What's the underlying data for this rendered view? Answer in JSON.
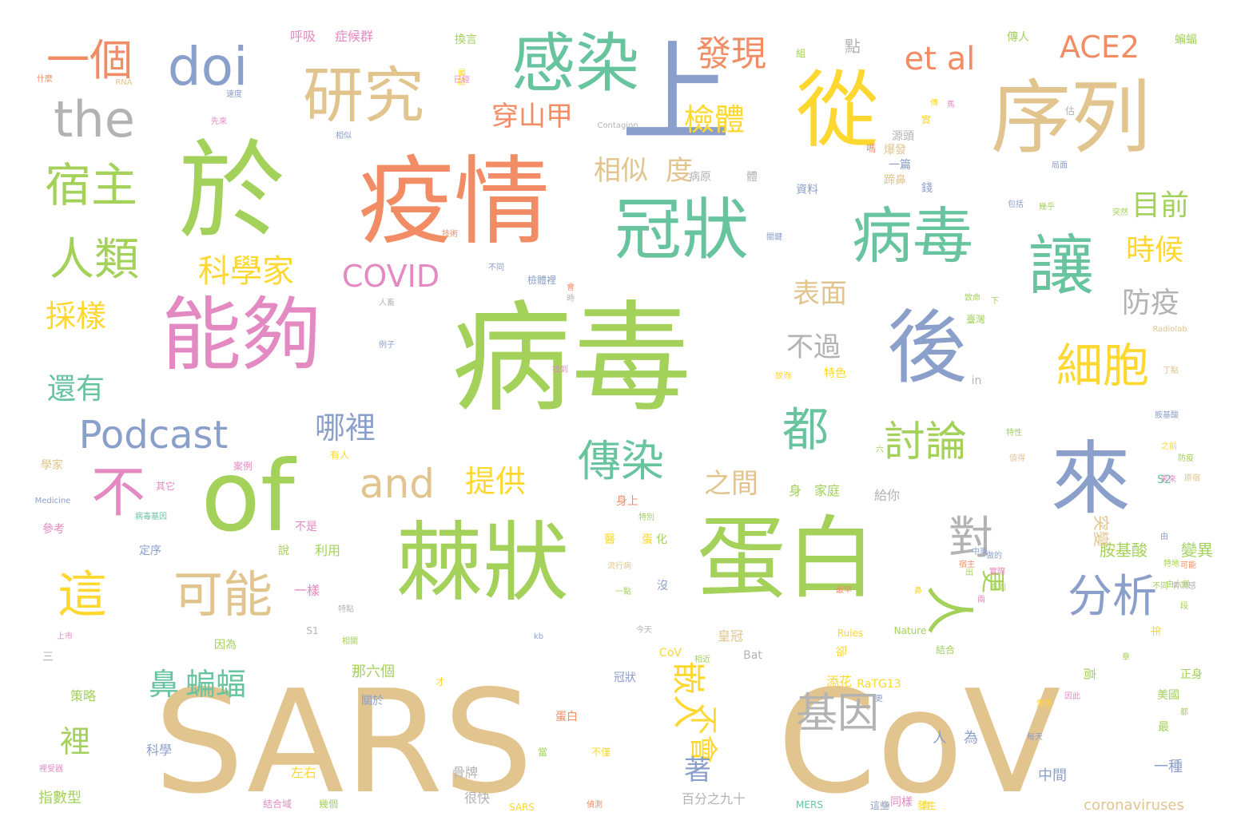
{
  "palette": {
    "green": "#a3d15a",
    "tan": "#e2c48e",
    "teal": "#67c49f",
    "orange": "#f28c64",
    "blue": "#8b9fcb",
    "pink": "#e48ac2",
    "yellow": "#fed730",
    "gray": "#b3b3b3"
  },
  "words": [
    {
      "text": "SARS",
      "color": "tan"
    },
    {
      "text": "CoV",
      "color": "tan"
    },
    {
      "text": "病毒",
      "color": "green"
    },
    {
      "text": "疫情",
      "color": "orange"
    },
    {
      "text": "於",
      "color": "green"
    },
    {
      "text": "上",
      "color": "blue"
    },
    {
      "text": "從",
      "color": "yellow"
    },
    {
      "text": "序列",
      "color": "tan"
    },
    {
      "text": "蛋白",
      "color": "green"
    },
    {
      "text": "棘狀",
      "color": "green"
    },
    {
      "text": "來",
      "color": "blue"
    },
    {
      "text": "後",
      "color": "blue"
    },
    {
      "text": "of",
      "color": "green"
    },
    {
      "text": "能夠",
      "color": "pink"
    },
    {
      "text": "病毒",
      "color": "teal"
    },
    {
      "text": "讓",
      "color": "teal"
    },
    {
      "text": "冠狀",
      "color": "teal"
    },
    {
      "text": "感染",
      "color": "teal"
    },
    {
      "text": "研究",
      "color": "tan"
    },
    {
      "text": "doi",
      "color": "blue"
    },
    {
      "text": "the",
      "color": "gray"
    },
    {
      "text": "一個",
      "color": "orange"
    },
    {
      "text": "宿主",
      "color": "green"
    },
    {
      "text": "人類",
      "color": "green"
    },
    {
      "text": "不",
      "color": "pink"
    },
    {
      "text": "這",
      "color": "yellow"
    },
    {
      "text": "可能",
      "color": "tan"
    },
    {
      "text": "Podcast",
      "color": "blue"
    },
    {
      "text": "and",
      "color": "tan"
    },
    {
      "text": "COVID",
      "color": "pink"
    },
    {
      "text": "科學家",
      "color": "yellow"
    },
    {
      "text": "都",
      "color": "teal"
    },
    {
      "text": "傳染",
      "color": "teal"
    },
    {
      "text": "對",
      "color": "gray"
    },
    {
      "text": "分析",
      "color": "blue"
    },
    {
      "text": "人",
      "color": "green"
    },
    {
      "text": "討論",
      "color": "green"
    },
    {
      "text": "細胞",
      "color": "yellow"
    },
    {
      "text": "基因",
      "color": "gray"
    },
    {
      "text": "嵌入",
      "color": "yellow"
    },
    {
      "text": "發現",
      "color": "orange"
    },
    {
      "text": "et al",
      "color": "orange"
    },
    {
      "text": "ACE2",
      "color": "orange"
    },
    {
      "text": "穿山甲",
      "color": "orange"
    },
    {
      "text": "檢體",
      "color": "yellow"
    },
    {
      "text": "相似",
      "color": "tan"
    },
    {
      "text": "度",
      "color": "tan"
    },
    {
      "text": "目前",
      "color": "green"
    },
    {
      "text": "時候",
      "color": "yellow"
    },
    {
      "text": "防疫",
      "color": "gray"
    },
    {
      "text": "表面",
      "color": "tan"
    },
    {
      "text": "不過",
      "color": "gray"
    },
    {
      "text": "哪裡",
      "color": "blue"
    },
    {
      "text": "提供",
      "color": "yellow"
    },
    {
      "text": "之間",
      "color": "tan"
    },
    {
      "text": "還有",
      "color": "teal"
    },
    {
      "text": "採樣",
      "color": "yellow"
    },
    {
      "text": "更",
      "color": "green"
    },
    {
      "text": "鼻",
      "color": "teal"
    },
    {
      "text": "蝙蝠",
      "color": "teal"
    },
    {
      "text": "裡",
      "color": "green"
    },
    {
      "text": "不會",
      "color": "yellow"
    },
    {
      "text": "著",
      "color": "blue"
    },
    {
      "text": "呼吸",
      "color": "pink"
    },
    {
      "text": "症候群",
      "color": "pink"
    },
    {
      "text": "Contagion",
      "color": "gray"
    },
    {
      "text": "病原",
      "color": "gray"
    },
    {
      "text": "體",
      "color": "gray"
    },
    {
      "text": "資料",
      "color": "blue"
    },
    {
      "text": "源頭",
      "color": "gray"
    },
    {
      "text": "爆發",
      "color": "tan"
    },
    {
      "text": "一篇",
      "color": "blue"
    },
    {
      "text": "蹄鼻",
      "color": "tan"
    },
    {
      "text": "錢",
      "color": "blue"
    },
    {
      "text": "點",
      "color": "gray"
    },
    {
      "text": "組",
      "color": "green"
    },
    {
      "text": "傳人",
      "color": "green"
    },
    {
      "text": "蝙蝠",
      "color": "green"
    },
    {
      "text": "換言",
      "color": "green"
    },
    {
      "text": "什麼",
      "color": "orange"
    },
    {
      "text": "RNA",
      "color": "tan"
    },
    {
      "text": "速度",
      "color": "blue"
    },
    {
      "text": "先來",
      "color": "pink"
    },
    {
      "text": "相似",
      "color": "blue"
    },
    {
      "text": "技術",
      "color": "orange"
    },
    {
      "text": "不同",
      "color": "blue"
    },
    {
      "text": "檢體裡",
      "color": "blue"
    },
    {
      "text": "人畜",
      "color": "gray"
    },
    {
      "text": "例子",
      "color": "blue"
    },
    {
      "text": "特色",
      "color": "yellow"
    },
    {
      "text": "故而",
      "color": "yellow"
    },
    {
      "text": "in",
      "color": "gray"
    },
    {
      "text": "Radiolab",
      "color": "tan"
    },
    {
      "text": "胺基酸",
      "color": "green"
    },
    {
      "text": "變異",
      "color": "green"
    },
    {
      "text": "突變",
      "color": "tan"
    },
    {
      "text": "S2",
      "color": "teal"
    },
    {
      "text": "給你",
      "color": "gray"
    },
    {
      "text": "身",
      "color": "green"
    },
    {
      "text": "家庭",
      "color": "green"
    },
    {
      "text": "身上",
      "color": "orange"
    },
    {
      "text": "不是",
      "color": "pink"
    },
    {
      "text": "利用",
      "color": "green"
    },
    {
      "text": "一樣",
      "color": "pink"
    },
    {
      "text": "S1",
      "color": "gray"
    },
    {
      "text": "因為",
      "color": "green"
    },
    {
      "text": "皇冠",
      "color": "tan"
    },
    {
      "text": "Bat",
      "color": "gray"
    },
    {
      "text": "冠狀",
      "color": "blue"
    },
    {
      "text": "那六個",
      "color": "green"
    },
    {
      "text": "關於",
      "color": "blue"
    },
    {
      "text": "添花",
      "color": "yellow"
    },
    {
      "text": "RaTG13",
      "color": "yellow"
    },
    {
      "text": "蛋白",
      "color": "orange"
    },
    {
      "text": "人",
      "color": "blue"
    },
    {
      "text": "為",
      "color": "blue"
    },
    {
      "text": "高",
      "color": "green"
    },
    {
      "text": "中間",
      "color": "blue"
    },
    {
      "text": "一種",
      "color": "blue"
    },
    {
      "text": "百分之九十",
      "color": "gray"
    },
    {
      "text": "coronaviruses",
      "color": "tan"
    },
    {
      "text": "很快",
      "color": "gray"
    },
    {
      "text": "骨牌",
      "color": "gray"
    },
    {
      "text": "左右",
      "color": "yellow"
    },
    {
      "text": "科學",
      "color": "blue"
    },
    {
      "text": "策略",
      "color": "green"
    },
    {
      "text": "指數型",
      "color": "green"
    },
    {
      "text": "參考",
      "color": "pink"
    },
    {
      "text": "學家",
      "color": "tan"
    },
    {
      "text": "Medicine",
      "color": "blue"
    },
    {
      "text": "說",
      "color": "green"
    },
    {
      "text": "定序",
      "color": "blue"
    },
    {
      "text": "沒",
      "color": "blue"
    },
    {
      "text": "卻",
      "color": "yellow"
    },
    {
      "text": "年",
      "color": "yellow"
    },
    {
      "text": "最",
      "color": "green"
    },
    {
      "text": "每天",
      "color": "blue"
    },
    {
      "text": "MERS",
      "color": "teal"
    },
    {
      "text": "SARS",
      "color": "yellow"
    },
    {
      "text": "同樣",
      "color": "pink"
    },
    {
      "text": "特性",
      "color": "green"
    },
    {
      "text": "之前",
      "color": "yellow"
    },
    {
      "text": "胺基酸",
      "color": "blue"
    },
    {
      "text": "丁點",
      "color": "tan"
    },
    {
      "text": "臺灣",
      "color": "green"
    },
    {
      "text": "致命",
      "color": "green"
    },
    {
      "text": "下",
      "color": "green"
    },
    {
      "text": "幾乎",
      "color": "green"
    },
    {
      "text": "包括",
      "color": "blue"
    },
    {
      "text": "突然",
      "color": "green"
    },
    {
      "text": "局面",
      "color": "blue"
    },
    {
      "text": "估",
      "color": "gray"
    },
    {
      "text": "實",
      "color": "yellow"
    },
    {
      "text": "馬",
      "color": "pink"
    },
    {
      "text": "嗎",
      "color": "orange"
    },
    {
      "text": "傳",
      "color": "yellow"
    },
    {
      "text": "屬",
      "color": "yellow"
    },
    {
      "text": "相",
      "color": "yellow"
    },
    {
      "text": "已經",
      "color": "pink"
    },
    {
      "text": "關鍵",
      "color": "blue"
    },
    {
      "text": "中東",
      "color": "blue"
    },
    {
      "text": "流行病",
      "color": "tan"
    },
    {
      "text": "醫",
      "color": "yellow"
    },
    {
      "text": "蛋",
      "color": "yellow"
    },
    {
      "text": "化",
      "color": "green"
    },
    {
      "text": "特別",
      "color": "green"
    },
    {
      "text": "最早",
      "color": "orange"
    },
    {
      "text": "一點",
      "color": "green"
    },
    {
      "text": "其它",
      "color": "pink"
    },
    {
      "text": "案例",
      "color": "pink"
    },
    {
      "text": "有人",
      "color": "yellow"
    },
    {
      "text": "病毒基因",
      "color": "teal"
    },
    {
      "text": "上市",
      "color": "pink"
    },
    {
      "text": "三",
      "color": "gray"
    },
    {
      "text": "相關",
      "color": "green"
    },
    {
      "text": "Rules",
      "color": "yellow"
    },
    {
      "text": "Nature",
      "color": "green"
    },
    {
      "text": "CoV",
      "color": "yellow"
    },
    {
      "text": "kb",
      "color": "blue"
    },
    {
      "text": "今天",
      "color": "gray"
    },
    {
      "text": "特點",
      "color": "gray"
    },
    {
      "text": "結合",
      "color": "green"
    },
    {
      "text": "相近",
      "color": "green"
    },
    {
      "text": "像是",
      "color": "yellow"
    },
    {
      "text": "美國",
      "color": "green"
    },
    {
      "text": "正身",
      "color": "green"
    },
    {
      "text": "章",
      "color": "green"
    },
    {
      "text": "才",
      "color": "yellow"
    },
    {
      "text": "當",
      "color": "green"
    },
    {
      "text": "不僅",
      "color": "yellow"
    },
    {
      "text": "裡受器",
      "color": "pink"
    },
    {
      "text": "結合域",
      "color": "pink"
    },
    {
      "text": "幾個",
      "color": "green"
    },
    {
      "text": "偵測",
      "color": "orange"
    },
    {
      "text": "這些",
      "color": "blue"
    },
    {
      "text": "會",
      "color": "yellow"
    },
    {
      "text": "發生",
      "color": "yellow"
    },
    {
      "text": "値",
      "color": "gray"
    },
    {
      "text": "時",
      "color": "gray"
    },
    {
      "text": "會",
      "color": "orange"
    },
    {
      "text": "找到",
      "color": "pink"
    },
    {
      "text": "六",
      "color": "green"
    },
    {
      "text": "防疫",
      "color": "green"
    },
    {
      "text": "未來",
      "color": "pink"
    },
    {
      "text": "原宿",
      "color": "tan"
    },
    {
      "text": "值得",
      "color": "tan"
    },
    {
      "text": "特地",
      "color": "green"
    },
    {
      "text": "可能",
      "color": "orange"
    },
    {
      "text": "做的",
      "color": "blue"
    },
    {
      "text": "出",
      "color": "green"
    },
    {
      "text": "直到",
      "color": "green"
    },
    {
      "text": "宿主",
      "color": "orange"
    },
    {
      "text": "實際",
      "color": "pink"
    },
    {
      "text": "兩",
      "color": "pink"
    },
    {
      "text": "由",
      "color": "blue"
    },
    {
      "text": "鼻",
      "color": "yellow"
    },
    {
      "text": "更",
      "color": "blue"
    },
    {
      "text": "因此",
      "color": "pink"
    },
    {
      "text": "都",
      "color": "green"
    },
    {
      "text": "由六個",
      "color": "green"
    },
    {
      "text": "段",
      "color": "green"
    },
    {
      "text": "青流感",
      "color": "gray"
    },
    {
      "text": "不同",
      "color": "green"
    },
    {
      "text": "數",
      "color": "blue"
    },
    {
      "text": "的",
      "color": "pink"
    },
    {
      "text": "理解",
      "color": "pink"
    },
    {
      "text": "而",
      "color": "orange"
    },
    {
      "text": "我們",
      "color": "green"
    }
  ]
}
